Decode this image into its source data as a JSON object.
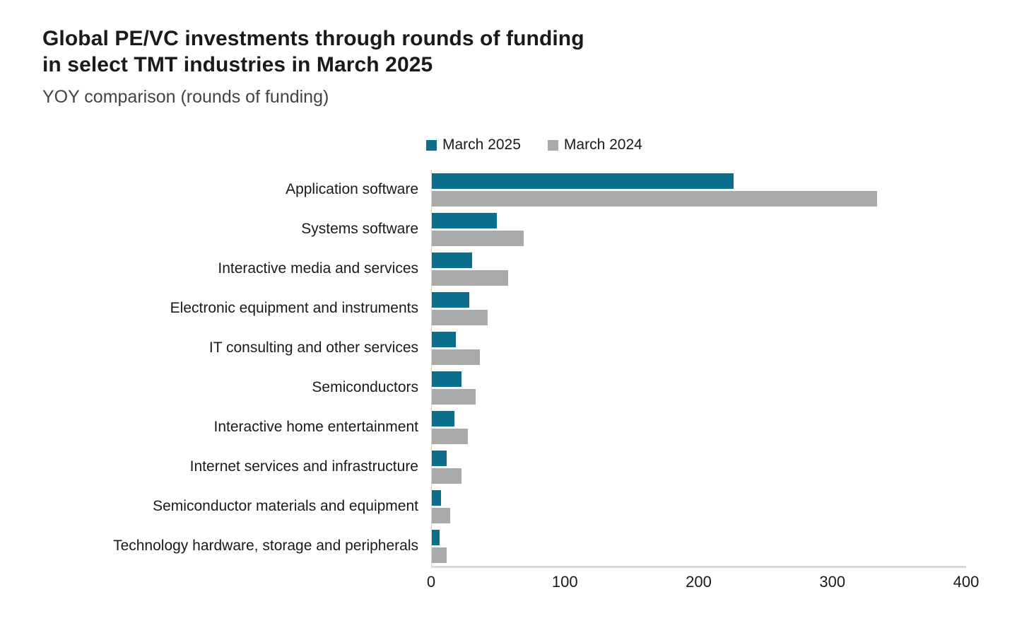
{
  "header": {
    "title_line1": "Global PE/VC investments through rounds of funding",
    "title_line2": "in select TMT industries in March 2025",
    "subtitle": "YOY comparison (rounds of funding)"
  },
  "colors": {
    "series_march_2025": "#0b6e8c",
    "series_march_2024": "#a9aaac",
    "axis_line": "#d9d9d9",
    "title_text": "#1a1a1a",
    "subtitle_text": "#434343"
  },
  "chart_data": {
    "type": "bar",
    "orientation": "horizontal",
    "title": "Global PE/VC investments through rounds of funding in select TMT industries in March 2025",
    "subtitle": "YOY comparison (rounds of funding)",
    "legend_position": "top",
    "grid": false,
    "xlabel": "",
    "ylabel": "",
    "xlim": [
      0,
      400
    ],
    "x_ticks": [
      "0",
      "100",
      "200",
      "300",
      "400"
    ],
    "categories": [
      "Application software",
      "Systems software",
      "Interactive media and services",
      "Electronic equipment and instruments",
      "IT consulting and other services",
      "Semiconductors",
      "Interactive home entertainment",
      "Internet services and infrastructure",
      "Semiconductor materials and equipment",
      "Technology hardware, storage and peripherals"
    ],
    "series": [
      {
        "name": "March 2025",
        "color": "#0b6e8c",
        "values": [
          226,
          49,
          30,
          28,
          18,
          22,
          17,
          11,
          7,
          6
        ]
      },
      {
        "name": "March 2024",
        "color": "#a9aaac",
        "values": [
          334,
          69,
          57,
          42,
          36,
          33,
          27,
          22,
          14,
          11
        ]
      }
    ]
  }
}
